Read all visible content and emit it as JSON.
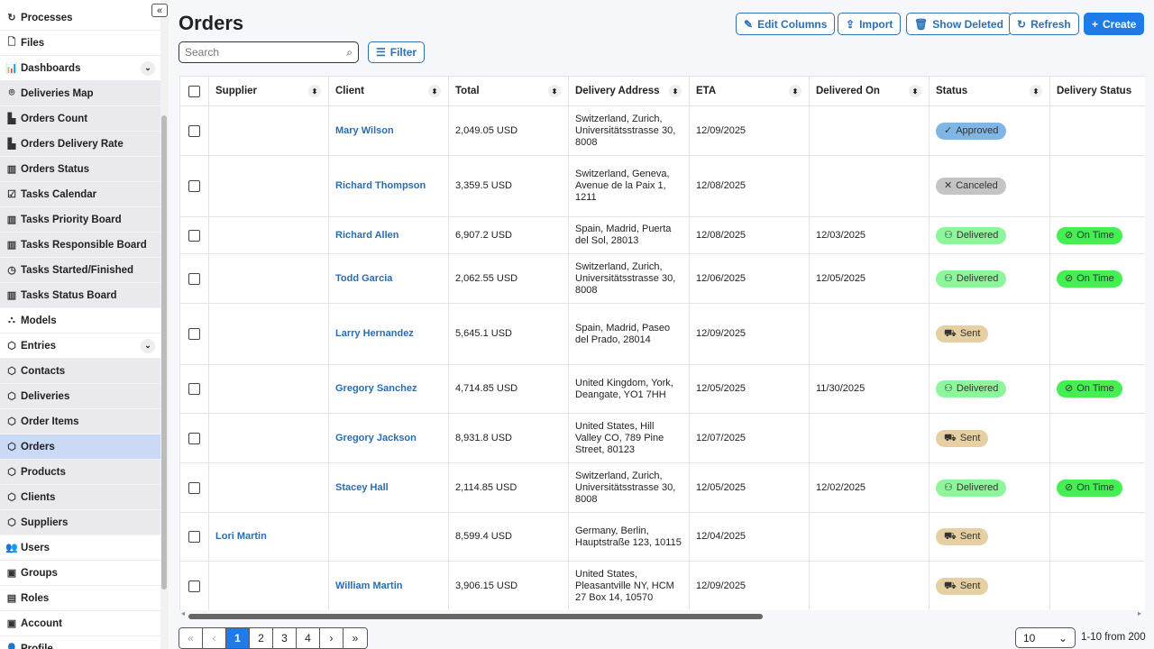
{
  "sidebar": {
    "items": [
      {
        "label": "Processes",
        "icon": "↻",
        "name": "processes"
      },
      {
        "label": "Files",
        "icon": "🗋",
        "name": "files"
      },
      {
        "label": "Dashboards",
        "icon": "📊",
        "name": "dashboards",
        "expandable": true
      },
      {
        "label": "Deliveries Map",
        "icon": "⌾",
        "name": "deliveries-map",
        "sub": true
      },
      {
        "label": "Orders Count",
        "icon": "▙",
        "name": "orders-count",
        "sub": true
      },
      {
        "label": "Orders Delivery Rate",
        "icon": "▙",
        "name": "orders-delivery-rate",
        "sub": true
      },
      {
        "label": "Orders Status",
        "icon": "▥",
        "name": "orders-status",
        "sub": true
      },
      {
        "label": "Tasks Calendar",
        "icon": "☑",
        "name": "tasks-calendar",
        "sub": true
      },
      {
        "label": "Tasks Priority Board",
        "icon": "▥",
        "name": "tasks-priority-board",
        "sub": true
      },
      {
        "label": "Tasks Responsible Board",
        "icon": "▥",
        "name": "tasks-responsible-board",
        "sub": true
      },
      {
        "label": "Tasks Started/Finished",
        "icon": "◷",
        "name": "tasks-started-finished",
        "sub": true
      },
      {
        "label": "Tasks Status Board",
        "icon": "▥",
        "name": "tasks-status-board",
        "sub": true
      },
      {
        "label": "Models",
        "icon": "⛬",
        "name": "models"
      },
      {
        "label": "Entries",
        "icon": "⬡",
        "name": "entries",
        "expandable": true
      },
      {
        "label": "Contacts",
        "icon": "⬡",
        "name": "contacts",
        "sub": true
      },
      {
        "label": "Deliveries",
        "icon": "⬡",
        "name": "deliveries",
        "sub": true
      },
      {
        "label": "Order Items",
        "icon": "⬡",
        "name": "order-items",
        "sub": true
      },
      {
        "label": "Orders",
        "icon": "⬡",
        "name": "orders",
        "sub": true,
        "active": true
      },
      {
        "label": "Products",
        "icon": "⬡",
        "name": "products",
        "sub": true
      },
      {
        "label": "Clients",
        "icon": "⬡",
        "name": "clients",
        "sub": true
      },
      {
        "label": "Suppliers",
        "icon": "⬡",
        "name": "suppliers",
        "sub": true
      },
      {
        "label": "Users",
        "icon": "👥",
        "name": "users"
      },
      {
        "label": "Groups",
        "icon": "▣",
        "name": "groups"
      },
      {
        "label": "Roles",
        "icon": "▤",
        "name": "roles"
      },
      {
        "label": "Account",
        "icon": "▣",
        "name": "account"
      },
      {
        "label": "Profile",
        "icon": "👤",
        "name": "profile"
      }
    ]
  },
  "page": {
    "title": "Orders"
  },
  "toolbar": {
    "edit_columns": "Edit Columns",
    "import": "Import",
    "show_deleted": "Show Deleted",
    "refresh": "Refresh",
    "create": "Create",
    "filter": "Filter"
  },
  "search": {
    "placeholder": "Search",
    "value": ""
  },
  "table": {
    "columns": [
      "Supplier",
      "Client",
      "Total",
      "Delivery Address",
      "ETA",
      "Delivered On",
      "Status",
      "Delivery Status"
    ],
    "rows": [
      {
        "supplier": "",
        "client": "Mary Wilson",
        "total": "2,049.05 USD",
        "address": "Switzerland, Zurich, Universitätsstrasse 30, 8008",
        "eta": "12/09/2025",
        "delivered_on": "",
        "status": "Approved",
        "delivery_status": ""
      },
      {
        "supplier": "",
        "client": "Richard Thompson",
        "total": "3,359.5 USD",
        "address": "Switzerland, Geneva, Avenue de la Paix 1, 1211",
        "eta": "12/08/2025",
        "delivered_on": "",
        "status": "Canceled",
        "delivery_status": ""
      },
      {
        "supplier": "",
        "client": "Richard Allen",
        "total": "6,907.2 USD",
        "address": "Spain, Madrid, Puerta del Sol, 28013",
        "eta": "12/08/2025",
        "delivered_on": "12/03/2025",
        "status": "Delivered",
        "delivery_status": "On Time"
      },
      {
        "supplier": "",
        "client": "Todd Garcia",
        "total": "2,062.55 USD",
        "address": "Switzerland, Zurich, Universitätsstrasse 30, 8008",
        "eta": "12/06/2025",
        "delivered_on": "12/05/2025",
        "status": "Delivered",
        "delivery_status": "On Time"
      },
      {
        "supplier": "",
        "client": "Larry Hernandez",
        "total": "5,645.1 USD",
        "address": "Spain, Madrid, Paseo del Prado, 28014",
        "eta": "12/09/2025",
        "delivered_on": "",
        "status": "Sent",
        "delivery_status": ""
      },
      {
        "supplier": "",
        "client": "Gregory Sanchez",
        "total": "4,714.85 USD",
        "address": "United Kingdom, York, Deangate, YO1 7HH",
        "eta": "12/05/2025",
        "delivered_on": "11/30/2025",
        "status": "Delivered",
        "delivery_status": "On Time"
      },
      {
        "supplier": "",
        "client": "Gregory Jackson",
        "total": "8,931.8 USD",
        "address": "United States, Hill Valley CO, 789 Pine Street, 80123",
        "eta": "12/07/2025",
        "delivered_on": "",
        "status": "Sent",
        "delivery_status": ""
      },
      {
        "supplier": "",
        "client": "Stacey Hall",
        "total": "2,114.85 USD",
        "address": "Switzerland, Zurich, Universitätsstrasse 30, 8008",
        "eta": "12/05/2025",
        "delivered_on": "12/02/2025",
        "status": "Delivered",
        "delivery_status": "On Time"
      },
      {
        "supplier": "Lori Martin",
        "client": "",
        "total": "8,599.4 USD",
        "address": "Germany, Berlin, Hauptstraße 123, 10115",
        "eta": "12/04/2025",
        "delivered_on": "",
        "status": "Sent",
        "delivery_status": ""
      },
      {
        "supplier": "",
        "client": "William Martin",
        "total": "3,906.15 USD",
        "address": "United States, Pleasantville NY, HCM 27 Box 14, 10570",
        "eta": "12/09/2025",
        "delivered_on": "",
        "status": "Sent",
        "delivery_status": ""
      }
    ]
  },
  "status_styles": {
    "Approved": {
      "color": "#7fb6e6",
      "icon": "✓"
    },
    "Canceled": {
      "color": "#c4c4c4",
      "icon": "✕"
    },
    "Delivered": {
      "color": "#8df59a",
      "icon": "⚇"
    },
    "Sent": {
      "color": "#e6cfa2",
      "icon": "⛟"
    },
    "On Time": {
      "color": "#45ee52",
      "icon": "⊘"
    }
  },
  "pagination": {
    "pages": [
      "1",
      "2",
      "3",
      "4"
    ],
    "current": "1",
    "first": "«",
    "prev": "‹",
    "next": "›",
    "last": "»",
    "per_page": "10",
    "range": "1-10 from 200"
  }
}
